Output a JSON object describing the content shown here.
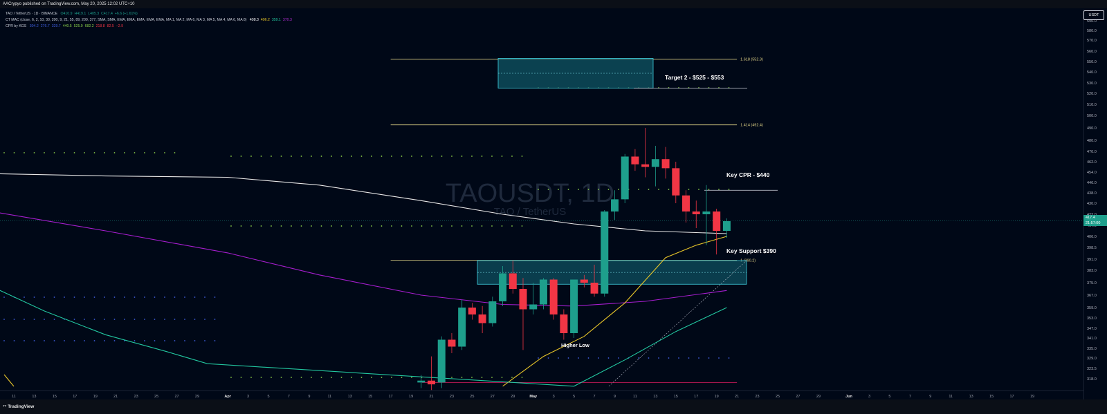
{
  "header": {
    "published_line": "AACrypyo published on TradingView.com, May 20, 2025 12:02 UTC+10"
  },
  "legend": {
    "symbol_line_label": "TAO / TetherUS · 1D · BINANCE",
    "ohlc": [
      {
        "k": "O",
        "v": "410.9"
      },
      {
        "k": "H",
        "v": "419.1"
      },
      {
        "k": "L",
        "v": "405.3"
      },
      {
        "k": "C",
        "v": "417.4"
      },
      {
        "k": "",
        "v": "+6.6 (+1.61%)"
      }
    ],
    "mac_line_label": "CT MAC (close, 6, 2, 10, 30, 200, 9, 21, 55, 89, 200, 377, SMA, SMA, EMA, EMA, EMA, EMA, EMA, MA 1, MA 2, MA 6, MA 3, MA 5, MA 4, MA 6, MA 8)",
    "mac_values": [
      {
        "v": "408.3",
        "color": "#ffffff"
      },
      {
        "v": "406.2",
        "color": "#e6c629"
      },
      {
        "v": "359.1",
        "color": "#22c7a0"
      },
      {
        "v": "370.3",
        "color": "#b12ed6"
      }
    ],
    "cpr_line_label": "CPR by KGS",
    "cpr_values": [
      {
        "v": "304.2",
        "color": "#3f5fe0"
      },
      {
        "v": "276.7",
        "color": "#3f5fe0"
      },
      {
        "v": "329.7",
        "color": "#3f5fe0"
      },
      {
        "v": "440.5",
        "color": "#8bd14a"
      },
      {
        "v": "525.9",
        "color": "#8bd14a"
      },
      {
        "v": "682.2",
        "color": "#8bd14a"
      },
      {
        "v": "218.8",
        "color": "#f23645"
      },
      {
        "v": "82.5",
        "color": "#f23645"
      },
      {
        "v": "−2.9",
        "color": "#f23645"
      }
    ]
  },
  "watermark": {
    "title": "TAOUSDT, 1D",
    "subtitle": "TAO / TetherUS"
  },
  "price_axis": {
    "currency_button": "USDT",
    "current_price": "417.4",
    "countdown": "21:57:00"
  },
  "annotations": {
    "target2": "Target 2 - $525 - $553",
    "key_cpr": "Key CPR - $440",
    "key_support": "Key Support $390",
    "higher_low": "Higher Low"
  },
  "fib_labels": {
    "f1618": "1.618 (552.3)",
    "f1414": "1.414 (492.4)",
    "f1": "1 (390.2)"
  },
  "footer": {
    "brand": "TradingView"
  },
  "colors": {
    "up": "#1e9f8c",
    "down": "#f23645",
    "background": "#000817",
    "box_fill": "#0f5a6a",
    "box_border": "#3fd0e0",
    "fib_line": "#e6d98a",
    "ema200": "#e8e8e8",
    "ma_purple": "#a51ed0",
    "ma_yellow": "#e6c629",
    "ma_green": "#22c7a0"
  },
  "chart_data": {
    "type": "candlestick",
    "title": "TAOUSDT, 1D",
    "ylim": [
      314,
      594
    ],
    "y_ticks": [
      318.0,
      323.5,
      329.0,
      335.0,
      341.0,
      347.0,
      353.0,
      359.0,
      367.0,
      375.0,
      383.0,
      391.0,
      398.5,
      406.0,
      414.0,
      422.0,
      430.0,
      438.0,
      446.0,
      454.0,
      462.0,
      470.0,
      480.0,
      490.0,
      500.0,
      510.0,
      520.0,
      530.0,
      540.0,
      550.0,
      560.0,
      570.0,
      580.0,
      590.0
    ],
    "x_ticks": [
      "11",
      "13",
      "15",
      "17",
      "19",
      "21",
      "23",
      "25",
      "27",
      "29",
      "Apr",
      "3",
      "5",
      "7",
      "9",
      "11",
      "13",
      "15",
      "17",
      "19",
      "21",
      "23",
      "25",
      "27",
      "29",
      "May",
      "3",
      "5",
      "7",
      "9",
      "11",
      "13",
      "15",
      "17",
      "19",
      "21",
      "23",
      "25",
      "27",
      "29",
      "Jun",
      "3",
      "5",
      "7",
      "9",
      "11",
      "13",
      "15",
      "17",
      "19"
    ],
    "candles": [
      {
        "date": "2025-04-20",
        "o": 316,
        "h": 320,
        "l": 313,
        "c": 317
      },
      {
        "date": "2025-04-21",
        "o": 317,
        "h": 330,
        "l": 312,
        "c": 315
      },
      {
        "date": "2025-04-22",
        "o": 316,
        "h": 342,
        "l": 313,
        "c": 340
      },
      {
        "date": "2025-04-23",
        "o": 340,
        "h": 344,
        "l": 332,
        "c": 336
      },
      {
        "date": "2025-04-24",
        "o": 336,
        "h": 364,
        "l": 334,
        "c": 359
      },
      {
        "date": "2025-04-25",
        "o": 359,
        "h": 362,
        "l": 352,
        "c": 355
      },
      {
        "date": "2025-04-26",
        "o": 355,
        "h": 360,
        "l": 344,
        "c": 350
      },
      {
        "date": "2025-04-27",
        "o": 350,
        "h": 366,
        "l": 348,
        "c": 363
      },
      {
        "date": "2025-04-28",
        "o": 363,
        "h": 386,
        "l": 360,
        "c": 381
      },
      {
        "date": "2025-04-29",
        "o": 381,
        "h": 390,
        "l": 368,
        "c": 371
      },
      {
        "date": "2025-04-30",
        "o": 371,
        "h": 378,
        "l": 334,
        "c": 358
      },
      {
        "date": "2025-05-01",
        "o": 358,
        "h": 375,
        "l": 355,
        "c": 361
      },
      {
        "date": "2025-05-02",
        "o": 361,
        "h": 378,
        "l": 358,
        "c": 377
      },
      {
        "date": "2025-05-03",
        "o": 377,
        "h": 378,
        "l": 352,
        "c": 355
      },
      {
        "date": "2025-05-04",
        "o": 355,
        "h": 358,
        "l": 340,
        "c": 344
      },
      {
        "date": "2025-05-05",
        "o": 344,
        "h": 377,
        "l": 341,
        "c": 377
      },
      {
        "date": "2025-05-06",
        "o": 377,
        "h": 380,
        "l": 372,
        "c": 375
      },
      {
        "date": "2025-05-07",
        "o": 375,
        "h": 387,
        "l": 366,
        "c": 368
      },
      {
        "date": "2025-05-08",
        "o": 368,
        "h": 425,
        "l": 366,
        "c": 424
      },
      {
        "date": "2025-05-09",
        "o": 424,
        "h": 440,
        "l": 418,
        "c": 433
      },
      {
        "date": "2025-05-10",
        "o": 433,
        "h": 468,
        "l": 430,
        "c": 466
      },
      {
        "date": "2025-05-11",
        "o": 466,
        "h": 472,
        "l": 455,
        "c": 460
      },
      {
        "date": "2025-05-12",
        "o": 460,
        "h": 490,
        "l": 450,
        "c": 458
      },
      {
        "date": "2025-05-13",
        "o": 458,
        "h": 475,
        "l": 443,
        "c": 464
      },
      {
        "date": "2025-05-14",
        "o": 464,
        "h": 474,
        "l": 449,
        "c": 457
      },
      {
        "date": "2025-05-15",
        "o": 457,
        "h": 462,
        "l": 430,
        "c": 436
      },
      {
        "date": "2025-05-16",
        "o": 436,
        "h": 440,
        "l": 416,
        "c": 424
      },
      {
        "date": "2025-05-17",
        "o": 424,
        "h": 432,
        "l": 412,
        "c": 422
      },
      {
        "date": "2025-05-18",
        "o": 422,
        "h": 444,
        "l": 400,
        "c": 424
      },
      {
        "date": "2025-05-19",
        "o": 424,
        "h": 426,
        "l": 394,
        "c": 410
      },
      {
        "date": "2025-05-20",
        "o": 410,
        "h": 419,
        "l": 405,
        "c": 417
      }
    ],
    "series": [
      {
        "name": "EMA 200",
        "color": "#e8e8e8",
        "points": [
          [
            "2025-03-08",
            453
          ],
          [
            "2025-03-20",
            451
          ],
          [
            "2025-04-01",
            450
          ],
          [
            "2025-04-10",
            444
          ],
          [
            "2025-04-20",
            432
          ],
          [
            "2025-04-28",
            422
          ],
          [
            "2025-05-05",
            415
          ],
          [
            "2025-05-12",
            410
          ],
          [
            "2025-05-20",
            408
          ]
        ]
      },
      {
        "name": "MA purple",
        "color": "#a51ed0",
        "points": [
          [
            "2025-03-08",
            425
          ],
          [
            "2025-03-20",
            410
          ],
          [
            "2025-04-01",
            395
          ],
          [
            "2025-04-10",
            380
          ],
          [
            "2025-04-20",
            367
          ],
          [
            "2025-04-28",
            361
          ],
          [
            "2025-05-05",
            360
          ],
          [
            "2025-05-12",
            363
          ],
          [
            "2025-05-20",
            370
          ]
        ]
      },
      {
        "name": "MA yellow",
        "color": "#e6c629",
        "points": [
          [
            "2025-04-28",
            314
          ],
          [
            "2025-05-02",
            330
          ],
          [
            "2025-05-06",
            342
          ],
          [
            "2025-05-10",
            362
          ],
          [
            "2025-05-14",
            392
          ],
          [
            "2025-05-17",
            400
          ],
          [
            "2025-05-20",
            406
          ]
        ]
      },
      {
        "name": "MA green",
        "color": "#22c7a0",
        "points": [
          [
            "2025-03-08",
            375
          ],
          [
            "2025-03-14",
            357
          ],
          [
            "2025-03-20",
            343
          ],
          [
            "2025-03-26",
            333
          ],
          [
            "2025-03-30",
            326
          ],
          [
            "2025-05-05",
            314
          ],
          [
            "2025-05-10",
            328
          ],
          [
            "2025-05-15",
            345
          ],
          [
            "2025-05-20",
            359
          ]
        ]
      }
    ],
    "levels": {
      "fib_1618": 552.3,
      "fib_1414": 492.4,
      "fib_1": 390.2,
      "target_zone": [
        525,
        553
      ],
      "support_zone": [
        374,
        390
      ],
      "key_cpr": 440
    }
  }
}
